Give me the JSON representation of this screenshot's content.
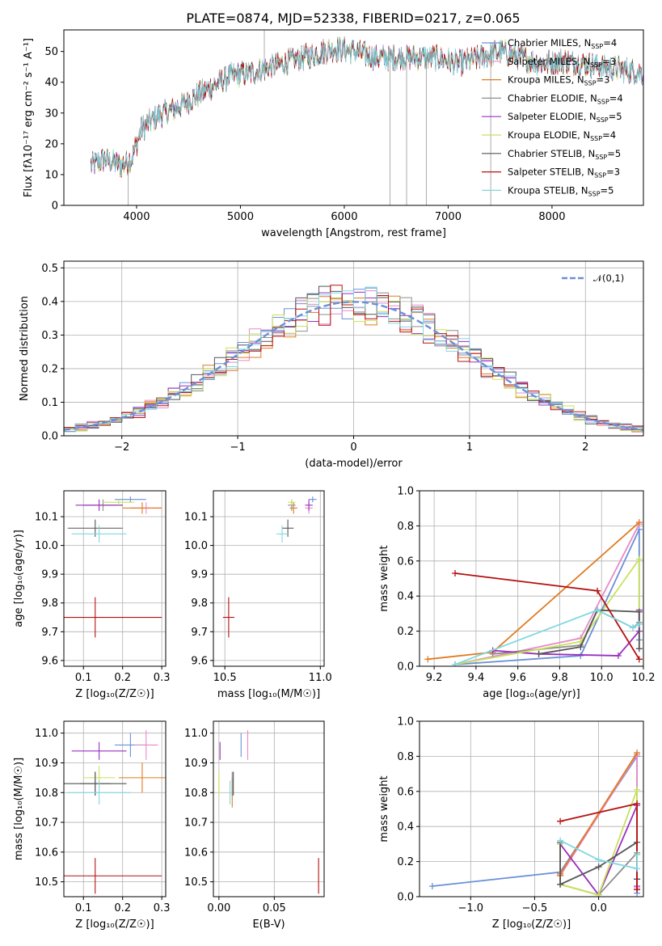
{
  "title": "PLATE=0874, MJD=52338, FIBERID=0217, z=0.065",
  "colors": {
    "Chabrier MILES": "#6a8fd8",
    "Salpeter MILES": "#e88ac8",
    "Kroupa MILES": "#e07b22",
    "Chabrier ELODIE": "#8e8e8e",
    "Salpeter ELODIE": "#9a2fc0",
    "Kroupa ELODIE": "#c8e25a",
    "Chabrier STELIB": "#555555",
    "Salpeter STELIB": "#b51010",
    "Kroupa STELIB": "#7fd8e2",
    "normal": "#6a8fd8"
  },
  "legend_top": [
    {
      "name": "Chabrier MILES",
      "nssp": "4"
    },
    {
      "name": "Salpeter MILES",
      "nssp": "3"
    },
    {
      "name": "Kroupa MILES",
      "nssp": "3"
    },
    {
      "name": "Chabrier ELODIE",
      "nssp": "4"
    },
    {
      "name": "Salpeter ELODIE",
      "nssp": "5"
    },
    {
      "name": "Kroupa ELODIE",
      "nssp": "4"
    },
    {
      "name": "Chabrier STELIB",
      "nssp": "5"
    },
    {
      "name": "Salpeter STELIB",
      "nssp": "3"
    },
    {
      "name": "Kroupa STELIB",
      "nssp": "5"
    }
  ],
  "legend_nssp_label": "N",
  "legend_nssp_sub": "SSP",
  "chart_data": [
    {
      "id": "spectrum",
      "type": "line",
      "xlabel": "wavelength [Angstrom, rest frame]",
      "ylabel": "Flux [f",
      "ylabel_full": "Flux [fλ10⁻¹⁷ erg cm⁻² s⁻¹ A⁻¹]",
      "xlim": [
        3300,
        8880
      ],
      "ylim": [
        0,
        57
      ],
      "xticks": [
        4000,
        5000,
        6000,
        7000,
        8000
      ],
      "yticks": [
        0,
        10,
        20,
        30,
        40,
        50
      ],
      "continuum": [
        [
          3560,
          13
        ],
        [
          3700,
          15
        ],
        [
          3850,
          13
        ],
        [
          3950,
          15
        ],
        [
          4050,
          25
        ],
        [
          4200,
          29
        ],
        [
          4350,
          31
        ],
        [
          4500,
          34
        ],
        [
          4700,
          38
        ],
        [
          4900,
          42
        ],
        [
          5100,
          43
        ],
        [
          5300,
          45
        ],
        [
          5500,
          47
        ],
        [
          5700,
          49
        ],
        [
          5900,
          51
        ],
        [
          6100,
          50
        ],
        [
          6300,
          48
        ],
        [
          6500,
          48
        ],
        [
          6700,
          48
        ],
        [
          6900,
          48
        ],
        [
          7100,
          46
        ],
        [
          7300,
          48
        ],
        [
          7500,
          50
        ],
        [
          7700,
          48
        ],
        [
          7900,
          46
        ],
        [
          8100,
          47
        ],
        [
          8300,
          46
        ],
        [
          8500,
          45
        ],
        [
          8700,
          44
        ],
        [
          8880,
          43
        ]
      ],
      "spikes": [
        {
          "x": 3920,
          "y": 0
        },
        {
          "x": 5230,
          "y": 57
        },
        {
          "x": 6440,
          "y": 0
        },
        {
          "x": 6600,
          "y": 0
        },
        {
          "x": 6790,
          "y": 0
        },
        {
          "x": 7410,
          "y": 0
        }
      ]
    },
    {
      "id": "residual-histogram",
      "type": "line",
      "xlabel": "(data-model)/error",
      "ylabel": "Normed distribution",
      "xlim": [
        -2.5,
        2.5
      ],
      "ylim": [
        0,
        0.52
      ],
      "xticks": [
        -2,
        -1,
        0,
        1,
        2
      ],
      "yticks": [
        0.0,
        0.1,
        0.2,
        0.3,
        0.4,
        0.5
      ],
      "legend": "𝒩(0,1)",
      "bin_width": 0.1
    },
    {
      "id": "age-vs-Z",
      "type": "scatter",
      "xlabel": "Z [log₁₀(Z/Z☉)]",
      "ylabel": "age  [log₁₀(age/yr)]",
      "xlim": [
        0.05,
        0.31
      ],
      "ylim": [
        9.58,
        10.19
      ],
      "xticks": [
        0.1,
        0.2,
        0.3
      ],
      "yticks": [
        9.6,
        9.7,
        9.8,
        9.9,
        10.0,
        10.1
      ],
      "points": [
        {
          "series": "Chabrier MILES",
          "x": 0.22,
          "y": 10.16,
          "xerr": 0.04,
          "yerr": 0.01
        },
        {
          "series": "Salpeter MILES",
          "x": 0.26,
          "y": 10.13,
          "xerr": 0.04,
          "yerr": 0.02
        },
        {
          "series": "Kroupa MILES",
          "x": 0.25,
          "y": 10.13,
          "xerr": 0.05,
          "yerr": 0.02
        },
        {
          "series": "Chabrier ELODIE",
          "x": 0.15,
          "y": 10.14,
          "xerr": 0.05,
          "yerr": 0.02
        },
        {
          "series": "Salpeter ELODIE",
          "x": 0.14,
          "y": 10.14,
          "xerr": 0.06,
          "yerr": 0.02
        },
        {
          "series": "Kroupa ELODIE",
          "x": 0.19,
          "y": 10.15,
          "xerr": 0.04,
          "yerr": 0.01
        },
        {
          "series": "Chabrier STELIB",
          "x": 0.13,
          "y": 10.06,
          "xerr": 0.07,
          "yerr": 0.03
        },
        {
          "series": "Salpeter STELIB",
          "x": 0.13,
          "y": 9.75,
          "xerr": 0.17,
          "yerr": 0.07
        },
        {
          "series": "Kroupa STELIB",
          "x": 0.14,
          "y": 10.04,
          "xerr": 0.07,
          "yerr": 0.03
        }
      ]
    },
    {
      "id": "age-vs-mass",
      "type": "scatter",
      "xlabel": "mass [log₁₀(M/M☉)]",
      "xlim": [
        10.44,
        11.02
      ],
      "ylim": [
        9.58,
        10.19
      ],
      "xticks": [
        10.5,
        11.0
      ],
      "yticks": [
        9.6,
        9.7,
        9.8,
        9.9,
        10.0,
        10.1
      ],
      "points": [
        {
          "series": "Chabrier MILES",
          "x": 10.96,
          "y": 10.16,
          "xerr": 0.02,
          "yerr": 0.01
        },
        {
          "series": "Salpeter MILES",
          "x": 10.94,
          "y": 10.13,
          "xerr": 0.02,
          "yerr": 0.02
        },
        {
          "series": "Kroupa MILES",
          "x": 10.86,
          "y": 10.13,
          "xerr": 0.02,
          "yerr": 0.02
        },
        {
          "series": "Chabrier ELODIE",
          "x": 10.85,
          "y": 10.14,
          "xerr": 0.02,
          "yerr": 0.02
        },
        {
          "series": "Salpeter ELODIE",
          "x": 10.94,
          "y": 10.14,
          "xerr": 0.02,
          "yerr": 0.02
        },
        {
          "series": "Kroupa ELODIE",
          "x": 10.85,
          "y": 10.15,
          "xerr": 0.02,
          "yerr": 0.01
        },
        {
          "series": "Chabrier STELIB",
          "x": 10.83,
          "y": 10.06,
          "xerr": 0.03,
          "yerr": 0.03
        },
        {
          "series": "Salpeter STELIB",
          "x": 10.52,
          "y": 9.75,
          "xerr": 0.03,
          "yerr": 0.07
        },
        {
          "series": "Kroupa STELIB",
          "x": 10.8,
          "y": 10.04,
          "xerr": 0.03,
          "yerr": 0.03
        }
      ]
    },
    {
      "id": "mass-weight-vs-age",
      "type": "line",
      "xlabel": "age  [log₁₀(age/yr)]",
      "ylabel": "mass weight",
      "xlim": [
        9.13,
        10.2
      ],
      "ylim": [
        0,
        1.0
      ],
      "xticks": [
        9.2,
        9.4,
        9.6,
        9.8,
        10.0,
        10.2
      ],
      "yticks": [
        0.0,
        0.2,
        0.4,
        0.6,
        0.8,
        1.0
      ],
      "series": [
        {
          "name": "Chabrier MILES",
          "x": [
            9.3,
            9.9,
            10.18,
            10.18
          ],
          "y": [
            0.01,
            0.06,
            0.78,
            0.15
          ]
        },
        {
          "name": "Salpeter MILES",
          "x": [
            9.3,
            9.9,
            10.18
          ],
          "y": [
            0.01,
            0.16,
            0.81
          ]
        },
        {
          "name": "Kroupa MILES",
          "x": [
            9.17,
            9.48,
            10.18
          ],
          "y": [
            0.04,
            0.08,
            0.82
          ]
        },
        {
          "name": "Chabrier ELODIE",
          "x": [
            9.48,
            9.9,
            9.98,
            10.15,
            10.18
          ],
          "y": [
            0.07,
            0.12,
            0.32,
            0.22,
            0.25
          ]
        },
        {
          "name": "Salpeter ELODIE",
          "x": [
            9.48,
            9.7,
            10.08,
            10.18,
            10.18
          ],
          "y": [
            0.09,
            0.07,
            0.06,
            0.2,
            0.32
          ]
        },
        {
          "name": "Kroupa ELODIE",
          "x": [
            9.3,
            9.9,
            10.18,
            10.18
          ],
          "y": [
            0.01,
            0.14,
            0.61,
            0.24
          ]
        },
        {
          "name": "Chabrier STELIB",
          "x": [
            9.7,
            9.9,
            9.98,
            10.18,
            10.18
          ],
          "y": [
            0.07,
            0.11,
            0.32,
            0.31,
            0.1
          ]
        },
        {
          "name": "Salpeter STELIB",
          "x": [
            9.3,
            9.98,
            10.18
          ],
          "y": [
            0.53,
            0.43,
            0.04
          ]
        },
        {
          "name": "Kroupa STELIB",
          "x": [
            9.3,
            9.98,
            10.15,
            10.18
          ],
          "y": [
            0.01,
            0.32,
            0.22,
            0.24
          ]
        }
      ]
    },
    {
      "id": "mass-vs-Z",
      "type": "scatter",
      "xlabel": "Z [log₁₀(Z/Z☉)]",
      "ylabel": "mass [log₁₀(M/M☉)]",
      "xlim": [
        0.05,
        0.31
      ],
      "ylim": [
        10.45,
        11.04
      ],
      "xticks": [
        0.1,
        0.2,
        0.3
      ],
      "yticks": [
        10.5,
        10.6,
        10.7,
        10.8,
        10.9,
        11.0
      ],
      "points": [
        {
          "series": "Chabrier MILES",
          "x": 0.22,
          "y": 10.96,
          "xerr": 0.04,
          "yerr": 0.04
        },
        {
          "series": "Salpeter MILES",
          "x": 0.26,
          "y": 10.96,
          "xerr": 0.03,
          "yerr": 0.05
        },
        {
          "series": "Kroupa MILES",
          "x": 0.25,
          "y": 10.85,
          "xerr": 0.06,
          "yerr": 0.05
        },
        {
          "series": "Chabrier ELODIE",
          "x": 0.13,
          "y": 10.83,
          "xerr": 0.04,
          "yerr": 0.04
        },
        {
          "series": "Salpeter ELODIE",
          "x": 0.14,
          "y": 10.94,
          "xerr": 0.07,
          "yerr": 0.03
        },
        {
          "series": "Kroupa ELODIE",
          "x": 0.14,
          "y": 10.85,
          "xerr": 0.04,
          "yerr": 0.04
        },
        {
          "series": "Chabrier STELIB",
          "x": 0.13,
          "y": 10.83,
          "xerr": 0.08,
          "yerr": 0.04
        },
        {
          "series": "Salpeter STELIB",
          "x": 0.13,
          "y": 10.52,
          "xerr": 0.17,
          "yerr": 0.06
        },
        {
          "series": "Kroupa STELIB",
          "x": 0.14,
          "y": 10.8,
          "xerr": 0.08,
          "yerr": 0.04
        }
      ]
    },
    {
      "id": "mass-vs-EBV",
      "type": "scatter",
      "xlabel": "E(B-V)",
      "xlim": [
        -0.005,
        0.095
      ],
      "ylim": [
        10.45,
        11.04
      ],
      "xticks": [
        0.0,
        0.05
      ],
      "yticks": [
        10.5,
        10.6,
        10.7,
        10.8,
        10.9,
        11.0
      ],
      "points": [
        {
          "series": "Chabrier MILES",
          "x": 0.02,
          "y": 10.96,
          "yerr": 0.04
        },
        {
          "series": "Salpeter MILES",
          "x": 0.026,
          "y": 10.96,
          "yerr": 0.05
        },
        {
          "series": "Kroupa MILES",
          "x": 0.012,
          "y": 10.8,
          "yerr": 0.05
        },
        {
          "series": "Chabrier ELODIE",
          "x": 0.012,
          "y": 10.83,
          "yerr": 0.04
        },
        {
          "series": "Salpeter ELODIE",
          "x": 0.001,
          "y": 10.94,
          "yerr": 0.03
        },
        {
          "series": "Kroupa ELODIE",
          "x": 0.0,
          "y": 10.83,
          "yerr": 0.04
        },
        {
          "series": "Chabrier STELIB",
          "x": 0.013,
          "y": 10.83,
          "yerr": 0.04
        },
        {
          "series": "Salpeter STELIB",
          "x": 0.09,
          "y": 10.52,
          "yerr": 0.06
        },
        {
          "series": "Kroupa STELIB",
          "x": 0.01,
          "y": 10.8,
          "yerr": 0.04
        }
      ]
    },
    {
      "id": "mass-weight-vs-Z",
      "type": "line",
      "xlabel": "Z [log₁₀(Z/Z☉)]",
      "ylabel": "mass weight",
      "xlim": [
        -1.4,
        0.35
      ],
      "ylim": [
        0,
        1.0
      ],
      "xticks": [
        -1.0,
        -0.5,
        0.0
      ],
      "yticks": [
        0.0,
        0.2,
        0.4,
        0.6,
        0.8,
        1.0
      ],
      "series": [
        {
          "name": "Chabrier MILES",
          "x": [
            -1.3,
            -0.3,
            0.3,
            0.3
          ],
          "y": [
            0.06,
            0.14,
            0.8,
            0.02
          ]
        },
        {
          "name": "Salpeter MILES",
          "x": [
            -0.3,
            0.3,
            0.3
          ],
          "y": [
            0.12,
            0.81,
            0.05
          ]
        },
        {
          "name": "Kroupa MILES",
          "x": [
            -0.3,
            -0.3,
            0.3
          ],
          "y": [
            0.12,
            0.13,
            0.82
          ]
        },
        {
          "name": "Chabrier ELODIE",
          "x": [
            -0.3,
            -0.3,
            0.0,
            0.3,
            0.3
          ],
          "y": [
            0.3,
            0.07,
            0.01,
            0.25,
            0.1
          ]
        },
        {
          "name": "Salpeter ELODIE",
          "x": [
            -0.3,
            0.0,
            0.3,
            0.3
          ],
          "y": [
            0.3,
            0.01,
            0.52,
            0.06
          ]
        },
        {
          "name": "Kroupa ELODIE",
          "x": [
            -0.3,
            -0.3,
            0.0,
            0.3,
            0.3
          ],
          "y": [
            0.3,
            0.07,
            0.01,
            0.61,
            0.24
          ]
        },
        {
          "name": "Chabrier STELIB",
          "x": [
            -0.3,
            -0.3,
            0.0,
            0.3,
            0.3
          ],
          "y": [
            0.31,
            0.07,
            0.17,
            0.31,
            0.1
          ]
        },
        {
          "name": "Salpeter STELIB",
          "x": [
            -0.3,
            0.3,
            0.3
          ],
          "y": [
            0.43,
            0.53,
            0.04
          ]
        },
        {
          "name": "Kroupa STELIB",
          "x": [
            -0.3,
            0.0,
            0.3,
            0.3
          ],
          "y": [
            0.32,
            0.21,
            0.16,
            0.24
          ]
        }
      ]
    }
  ]
}
